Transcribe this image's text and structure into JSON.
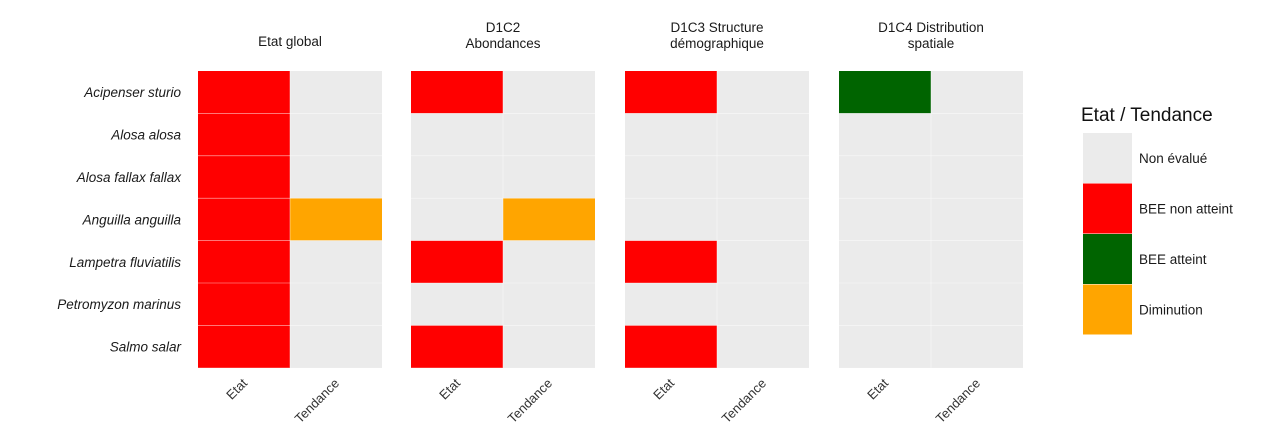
{
  "chart_data": {
    "type": "heatmap",
    "panels": [
      {
        "title": [
          "Etat global"
        ],
        "etat": [
          "BEE non atteint",
          "BEE non atteint",
          "BEE non atteint",
          "BEE non atteint",
          "BEE non atteint",
          "BEE non atteint",
          "BEE non atteint"
        ],
        "tendance": [
          "Non évalué",
          "Non évalué",
          "Non évalué",
          "Diminution",
          "Non évalué",
          "Non évalué",
          "Non évalué"
        ]
      },
      {
        "title": [
          "D1C2",
          "Abondances"
        ],
        "etat": [
          "BEE non atteint",
          "Non évalué",
          "Non évalué",
          "Non évalué",
          "BEE non atteint",
          "Non évalué",
          "BEE non atteint"
        ],
        "tendance": [
          "Non évalué",
          "Non évalué",
          "Non évalué",
          "Diminution",
          "Non évalué",
          "Non évalué",
          "Non évalué"
        ]
      },
      {
        "title": [
          "D1C3 Structure",
          "démographique"
        ],
        "etat": [
          "BEE non atteint",
          "Non évalué",
          "Non évalué",
          "Non évalué",
          "BEE non atteint",
          "Non évalué",
          "BEE non atteint"
        ],
        "tendance": [
          "Non évalué",
          "Non évalué",
          "Non évalué",
          "Non évalué",
          "Non évalué",
          "Non évalué",
          "Non évalué"
        ]
      },
      {
        "title": [
          "D1C4 Distribution",
          "spatiale"
        ],
        "etat": [
          "BEE atteint",
          "Non évalué",
          "Non évalué",
          "Non évalué",
          "Non évalué",
          "Non évalué",
          "Non évalué"
        ],
        "tendance": [
          "Non évalué",
          "Non évalué",
          "Non évalué",
          "Non évalué",
          "Non évalué",
          "Non évalué",
          "Non évalué"
        ]
      }
    ],
    "species": [
      "Acipenser sturio",
      "Alosa alosa",
      "Alosa fallax fallax",
      "Anguilla anguilla",
      "Lampetra fluviatilis",
      "Petromyzon marinus",
      "Salmo salar"
    ],
    "columns": [
      "Etat",
      "Tendance"
    ],
    "legend": {
      "title": "Etat / Tendance",
      "placement": "right",
      "items": [
        {
          "label": "Non évalué",
          "color": "#ebebeb"
        },
        {
          "label": "BEE non atteint",
          "color": "#ff0000"
        },
        {
          "label": "BEE atteint",
          "color": "#006400"
        },
        {
          "label": "Diminution",
          "color": "#ffa500"
        }
      ]
    }
  }
}
